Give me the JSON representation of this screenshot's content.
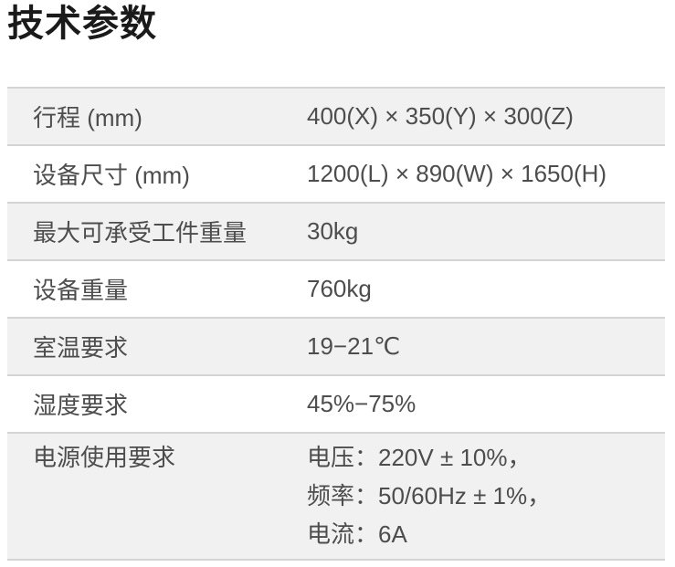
{
  "page": {
    "title": "技术参数"
  },
  "colors": {
    "title_text": "#1a1a1a",
    "row_text": "#4d4d4d",
    "row_alt_background": "#f1f1f1",
    "row_background": "#ffffff",
    "divider": "#d4d4d4"
  },
  "table": {
    "rows": [
      {
        "label": "行程 (mm)",
        "value": "400(X) × 350(Y) × 300(Z)"
      },
      {
        "label": "设备尺寸 (mm)",
        "value": "1200(L) × 890(W) × 1650(H)"
      },
      {
        "label": "最大可承受工件重量",
        "value": "30kg"
      },
      {
        "label": "设备重量",
        "value": "760kg"
      },
      {
        "label": "室温要求",
        "value": "19−21℃"
      },
      {
        "label": "湿度要求",
        "value": "45%−75%"
      },
      {
        "label": "电源使用要求",
        "value_lines": [
          "电压：220V ± 10%，",
          "频率：50/60Hz ± 1%，",
          "电流：6A"
        ]
      }
    ]
  }
}
